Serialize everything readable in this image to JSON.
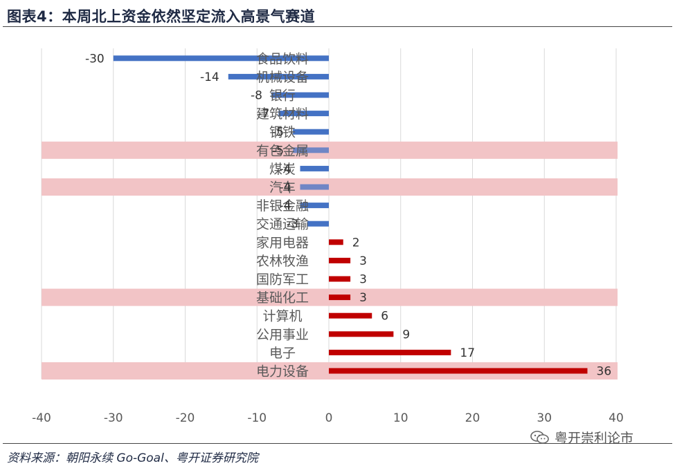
{
  "header": {
    "title": "图表4：本周北上资金依然坚定流入高景气赛道"
  },
  "footer": {
    "source": "资料来源：朝阳永续 Go-Goal、粤开证券研究院",
    "watermark": "粤开崇利论市",
    "watermark_icon": "wechat-icon"
  },
  "colors": {
    "negative": "#4472C4",
    "positive": "#C00000",
    "highlight": "#F2C4C6",
    "grid": "#D9D9D9"
  },
  "chart_data": {
    "type": "bar",
    "orientation": "horizontal",
    "title": "",
    "xlabel": "",
    "ylabel": "",
    "xlim": [
      -40,
      40
    ],
    "xticks": [
      -40,
      -30,
      -20,
      -10,
      0,
      10,
      20,
      30,
      40
    ],
    "grid": true,
    "legend": "none",
    "categories": [
      "食品饮料",
      "机械设备",
      "银行",
      "建筑材料",
      "钢铁",
      "有色金属",
      "煤炭",
      "汽车",
      "非银金融",
      "交通运输",
      "家用电器",
      "农林牧渔",
      "国防军工",
      "基础化工",
      "计算机",
      "公用事业",
      "电子",
      "电力设备"
    ],
    "values": [
      -30,
      -14,
      -8,
      -7,
      -5,
      -5,
      -4,
      -4,
      -4,
      -3,
      2,
      3,
      3,
      3,
      6,
      9,
      17,
      36
    ],
    "highlighted": [
      "有色金属",
      "汽车",
      "基础化工",
      "电力设备"
    ]
  }
}
